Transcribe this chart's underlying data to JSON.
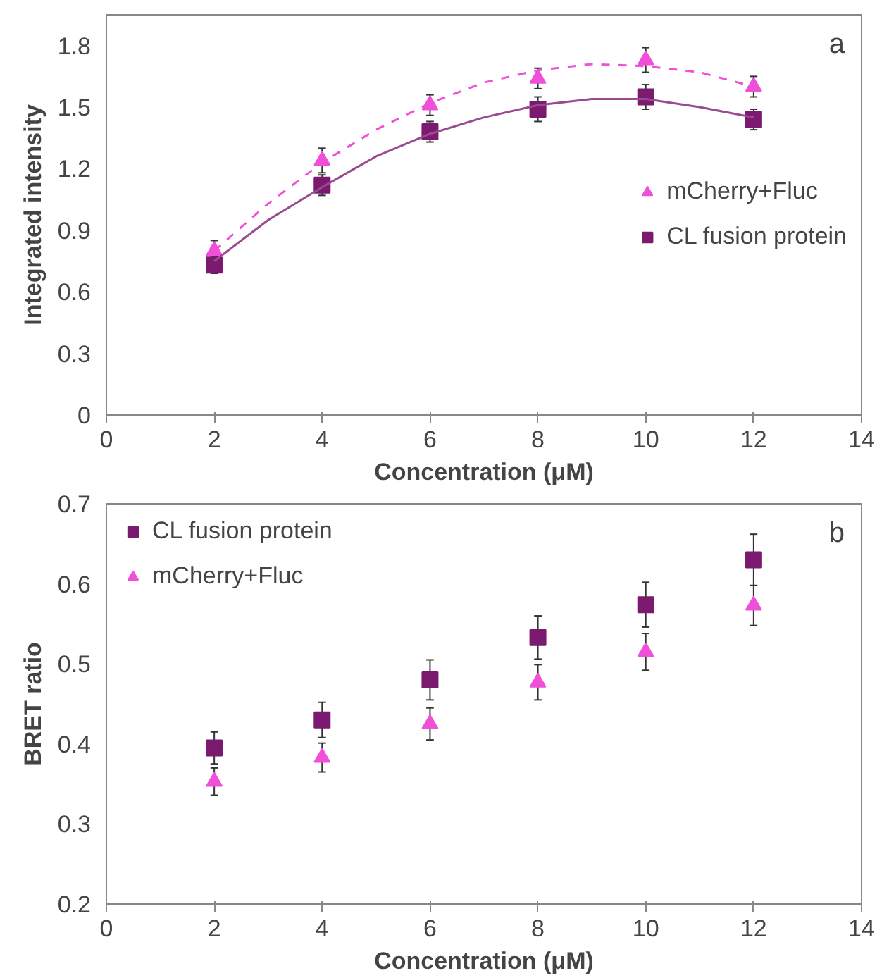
{
  "chart_data": [
    {
      "type": "scatter",
      "xlabel": "Concentration (μM)",
      "ylabel": "Integrated intensity",
      "annotations": [
        "a"
      ],
      "x": [
        2,
        4,
        6,
        8,
        10,
        12
      ],
      "xlim": [
        0,
        14
      ],
      "xticks": [
        0,
        2,
        4,
        6,
        8,
        10,
        12,
        14
      ],
      "ylim": [
        0,
        1.95
      ],
      "yticks": [
        0,
        0.3,
        0.6,
        0.9,
        1.2,
        1.5,
        1.8
      ],
      "grid": false,
      "legend": "right",
      "series": [
        {
          "name": "mCherry+Fluc",
          "color": "#f050d8",
          "marker": "triangle",
          "values": [
            0.8,
            1.24,
            1.51,
            1.64,
            1.73,
            1.6
          ],
          "errors": [
            0.05,
            0.06,
            0.05,
            0.05,
            0.06,
            0.05
          ]
        },
        {
          "name": "CL fusion protein",
          "color": "#7b1a6e",
          "marker": "square",
          "values": [
            0.73,
            1.12,
            1.38,
            1.49,
            1.55,
            1.44
          ],
          "errors": [
            0.04,
            0.05,
            0.05,
            0.06,
            0.06,
            0.05
          ]
        },
        {
          "type": "line",
          "color": "#f050d8",
          "line_style": "dashed",
          "x": [
            2,
            3,
            4,
            5,
            6,
            7,
            8,
            9,
            10,
            11,
            12
          ],
          "values": [
            0.8,
            1.03,
            1.23,
            1.39,
            1.52,
            1.62,
            1.68,
            1.71,
            1.7,
            1.67,
            1.6
          ]
        },
        {
          "type": "line",
          "color": "#9a4a90",
          "line_style": "solid",
          "x": [
            2,
            3,
            4,
            5,
            6,
            7,
            8,
            9,
            10,
            11,
            12
          ],
          "values": [
            0.75,
            0.95,
            1.11,
            1.26,
            1.37,
            1.45,
            1.51,
            1.54,
            1.54,
            1.5,
            1.45
          ]
        }
      ]
    },
    {
      "type": "scatter",
      "xlabel": "Concentration (μM)",
      "ylabel": "BRET ratio",
      "annotations": [
        "b"
      ],
      "x": [
        2,
        4,
        6,
        8,
        10,
        12
      ],
      "xlim": [
        0,
        14
      ],
      "xticks": [
        0,
        2,
        4,
        6,
        8,
        10,
        12,
        14
      ],
      "ylim": [
        0.2,
        0.7
      ],
      "yticks": [
        0.2,
        0.3,
        0.4,
        0.5,
        0.6,
        0.7
      ],
      "grid": false,
      "legend": "top left",
      "series": [
        {
          "name": "CL fusion protein",
          "color": "#7b1a6e",
          "marker": "square",
          "values": [
            0.395,
            0.43,
            0.48,
            0.533,
            0.574,
            0.63
          ],
          "errors": [
            0.02,
            0.022,
            0.025,
            0.027,
            0.028,
            0.032
          ]
        },
        {
          "name": "mCherry+Fluc",
          "color": "#f050d8",
          "marker": "triangle",
          "values": [
            0.353,
            0.383,
            0.425,
            0.477,
            0.515,
            0.573
          ],
          "errors": [
            0.017,
            0.018,
            0.02,
            0.022,
            0.023,
            0.025
          ]
        }
      ]
    }
  ]
}
